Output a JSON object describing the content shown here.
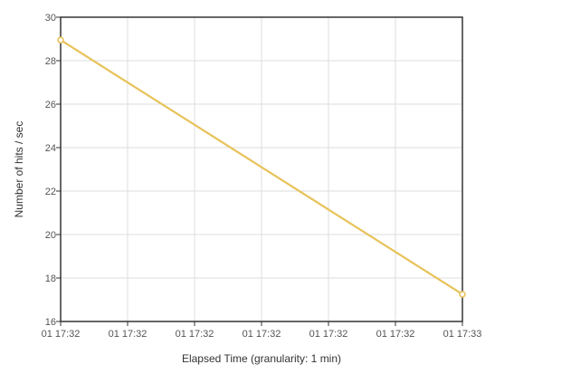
{
  "chart_data": {
    "type": "line",
    "xlabel": "Elapsed Time (granularity: 1 min)",
    "ylabel": "Number of hits / sec",
    "x_tick_labels": [
      "01 17:32",
      "01 17:32",
      "01 17:32",
      "01 17:32",
      "01 17:32",
      "01 17:32",
      "01 17:33"
    ],
    "y_ticks": [
      16,
      18,
      20,
      22,
      24,
      26,
      28,
      30
    ],
    "ylim": [
      16,
      30
    ],
    "grid": true,
    "legend": "none",
    "series": [
      {
        "color": "#e8c25a",
        "points": [
          {
            "x": "01 17:32",
            "y": 28.95
          },
          {
            "x": "01 17:33",
            "y": 17.25
          }
        ]
      }
    ]
  }
}
